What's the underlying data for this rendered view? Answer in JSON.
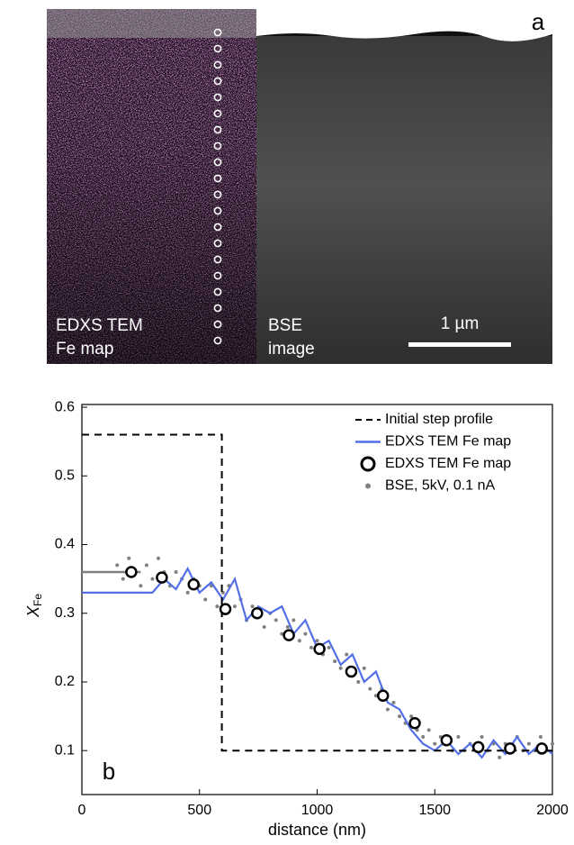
{
  "image_panel": {
    "label": "a",
    "left_caption": [
      "EDXS TEM",
      "Fe map"
    ],
    "right_caption": [
      "BSE",
      "image"
    ],
    "scale_bar": "1 µm"
  },
  "chart_data": {
    "type": "line",
    "panel_label": "b",
    "xlabel": "distance (nm)",
    "ylabel": "X",
    "ylabel_sub": "Fe",
    "xlim": [
      0,
      2000
    ],
    "ylim": [
      0.036,
      0.604
    ],
    "xticks": [
      0,
      500,
      1000,
      1500,
      2000
    ],
    "yticks": [
      0.1,
      0.2,
      0.3,
      0.4,
      0.5,
      0.6
    ],
    "legend": "upper right",
    "series": [
      {
        "name": "Initial step profile",
        "color": "#000000",
        "style": "dashed",
        "x": [
          0,
          595,
          595,
          2000
        ],
        "y": [
          0.56,
          0.56,
          0.1,
          0.1
        ]
      },
      {
        "name": "EDXS TEM Fe map",
        "color": "#5470e6",
        "style": "line",
        "x": [
          0,
          50,
          100,
          150,
          200,
          250,
          300,
          350,
          400,
          450,
          500,
          550,
          600,
          650,
          700,
          750,
          800,
          850,
          900,
          950,
          1000,
          1050,
          1100,
          1150,
          1200,
          1250,
          1300,
          1350,
          1400,
          1450,
          1500,
          1550,
          1600,
          1650,
          1700,
          1750,
          1800,
          1850,
          1900,
          1950,
          2000
        ],
        "y": [
          0.33,
          0.33,
          0.33,
          0.33,
          0.33,
          0.33,
          0.33,
          0.35,
          0.335,
          0.365,
          0.33,
          0.345,
          0.32,
          0.35,
          0.29,
          0.31,
          0.3,
          0.31,
          0.27,
          0.29,
          0.25,
          0.26,
          0.225,
          0.24,
          0.2,
          0.215,
          0.17,
          0.16,
          0.13,
          0.11,
          0.1,
          0.115,
          0.095,
          0.11,
          0.09,
          0.115,
          0.095,
          0.12,
          0.095,
          0.11,
          0.095
        ]
      },
      {
        "name": "EDXS TEM Fe map",
        "color": "#000000",
        "style": "circle",
        "x": [
          210,
          340,
          475,
          610,
          745,
          880,
          1010,
          1145,
          1280,
          1415,
          1550,
          1685,
          1820,
          1955
        ],
        "y": [
          0.36,
          0.352,
          0.342,
          0.306,
          0.3,
          0.268,
          0.248,
          0.215,
          0.18,
          0.14,
          0.115,
          0.105,
          0.103,
          0.103
        ]
      },
      {
        "name": "BSE, 5kV, 0.1 nA",
        "color": "#808080",
        "style": "dot",
        "line_x": [
          0,
          250
        ],
        "line_y": [
          0.36,
          0.36
        ],
        "x": [
          150,
          175,
          200,
          225,
          250,
          275,
          300,
          325,
          350,
          375,
          400,
          425,
          450,
          475,
          500,
          525,
          550,
          575,
          600,
          625,
          650,
          675,
          700,
          725,
          750,
          775,
          800,
          825,
          850,
          875,
          900,
          925,
          950,
          975,
          1000,
          1025,
          1050,
          1075,
          1100,
          1125,
          1150,
          1175,
          1200,
          1225,
          1250,
          1275,
          1300,
          1325,
          1350,
          1375,
          1400,
          1425,
          1450,
          1475,
          1500,
          1525,
          1550,
          1575,
          1600,
          1625,
          1650,
          1675,
          1700,
          1725,
          1750,
          1775,
          1800,
          1825,
          1850,
          1875,
          1900,
          1925,
          1950,
          1975,
          2000
        ],
        "y": [
          0.37,
          0.35,
          0.38,
          0.36,
          0.34,
          0.37,
          0.35,
          0.38,
          0.36,
          0.34,
          0.36,
          0.35,
          0.33,
          0.35,
          0.34,
          0.32,
          0.34,
          0.31,
          0.33,
          0.34,
          0.31,
          0.32,
          0.29,
          0.31,
          0.3,
          0.28,
          0.3,
          0.29,
          0.27,
          0.28,
          0.29,
          0.26,
          0.27,
          0.25,
          0.26,
          0.24,
          0.25,
          0.23,
          0.22,
          0.24,
          0.21,
          0.2,
          0.22,
          0.19,
          0.18,
          0.19,
          0.16,
          0.17,
          0.15,
          0.14,
          0.15,
          0.13,
          0.12,
          0.13,
          0.11,
          0.12,
          0.11,
          0.1,
          0.12,
          0.1,
          0.11,
          0.1,
          0.12,
          0.1,
          0.11,
          0.09,
          0.11,
          0.1,
          0.12,
          0.1,
          0.11,
          0.1,
          0.12,
          0.1,
          0.11
        ]
      }
    ]
  }
}
